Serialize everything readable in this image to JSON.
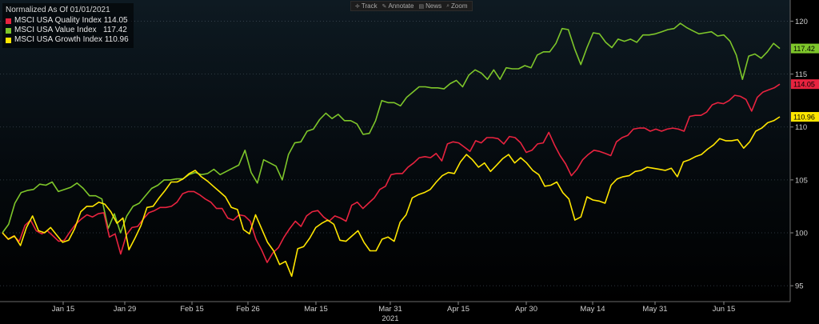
{
  "legend": {
    "header": "Normalized As Of 01/01/2021",
    "items": [
      {
        "name": "MSCI USA Quality Index",
        "value": "114.05",
        "color": "#e8233f"
      },
      {
        "name": "MSCI USA Value Index",
        "value": "117.42",
        "color": "#7ec62a"
      },
      {
        "name": "MSCI USA Growth Index",
        "value": "110.96",
        "color": "#ffe600"
      }
    ]
  },
  "toolbar": {
    "items": [
      {
        "label": "Track",
        "icon": "crosshair-icon"
      },
      {
        "label": "Annotate",
        "icon": "pencil-icon"
      },
      {
        "label": "News",
        "icon": "news-icon"
      },
      {
        "label": "Zoom",
        "icon": "magnifier-icon"
      }
    ]
  },
  "chart_data": {
    "type": "line",
    "title": "Normalized As Of 01/01/2021",
    "x_year_label": "2021",
    "x_ticks": [
      "Jan 15",
      "Jan 29",
      "Feb 15",
      "Feb 26",
      "Mar 15",
      "Mar 31",
      "Apr 15",
      "Apr 30",
      "May 14",
      "May 31",
      "Jun 15"
    ],
    "y_ticks": [
      95,
      100,
      105,
      110,
      115,
      120
    ],
    "ylim": [
      93.5,
      122
    ],
    "y_axis_side": "right",
    "grid": "horizontal dotted",
    "legend_position": "top-left",
    "series": [
      {
        "name": "MSCI USA Value Index",
        "color": "#7ec62a",
        "last_value": "117.42",
        "values": [
          100.0,
          100.8,
          102.8,
          103.8,
          104.0,
          104.1,
          104.6,
          104.5,
          104.8,
          103.9,
          104.1,
          104.3,
          104.7,
          104.2,
          103.5,
          103.5,
          103.2,
          100.4,
          101.8,
          100.0,
          101.6,
          102.5,
          102.8,
          103.5,
          104.2,
          104.5,
          105.0,
          105.0,
          105.1,
          105.1,
          105.5,
          105.7,
          105.5,
          105.6,
          106.0,
          105.5,
          105.8,
          106.1,
          106.4,
          107.8,
          105.7,
          104.7,
          106.9,
          106.6,
          106.3,
          105.0,
          107.4,
          108.5,
          108.6,
          109.6,
          109.8,
          110.7,
          111.3,
          110.8,
          111.2,
          110.6,
          110.6,
          110.3,
          109.3,
          109.4,
          110.6,
          112.5,
          112.3,
          112.3,
          112.0,
          112.8,
          113.3,
          113.8,
          113.8,
          113.7,
          113.7,
          113.6,
          114.1,
          114.4,
          113.8,
          114.9,
          115.4,
          115.1,
          114.5,
          115.4,
          114.5,
          115.6,
          115.5,
          115.5,
          115.8,
          115.6,
          116.8,
          117.1,
          117.1,
          117.9,
          119.3,
          119.2,
          117.4,
          115.9,
          117.5,
          118.9,
          118.8,
          118.0,
          117.5,
          118.3,
          118.1,
          118.3,
          118.0,
          118.7,
          118.7,
          118.8,
          119.0,
          119.2,
          119.3,
          119.8,
          119.4,
          119.1,
          118.8,
          118.9,
          119.0,
          118.6,
          118.7,
          118.1,
          116.8,
          114.5,
          116.7,
          116.9,
          116.5,
          117.1,
          117.9,
          117.42
        ]
      },
      {
        "name": "MSCI USA Quality Index",
        "color": "#e8233f",
        "last_value": "114.05",
        "values": [
          100.0,
          99.4,
          99.7,
          99.2,
          100.7,
          101.2,
          100.2,
          99.9,
          100.2,
          99.7,
          99.2,
          99.3,
          100.1,
          100.8,
          101.3,
          101.7,
          101.5,
          101.8,
          101.9,
          99.6,
          99.9,
          98.0,
          99.8,
          100.5,
          100.6,
          101.3,
          101.9,
          102.1,
          102.4,
          102.4,
          102.5,
          102.9,
          103.7,
          103.9,
          103.9,
          103.6,
          103.2,
          102.9,
          102.3,
          102.3,
          101.4,
          101.2,
          101.7,
          101.6,
          101.1,
          99.4,
          98.4,
          97.2,
          98.1,
          98.6,
          99.6,
          100.4,
          101.1,
          100.6,
          101.6,
          102.0,
          102.1,
          101.5,
          101.1,
          101.6,
          101.4,
          101.1,
          102.6,
          102.9,
          102.3,
          102.8,
          103.3,
          104.1,
          104.4,
          105.5,
          105.6,
          105.6,
          106.2,
          106.6,
          107.1,
          107.2,
          107.1,
          107.5,
          106.8,
          108.4,
          108.6,
          108.5,
          108.1,
          107.7,
          108.7,
          108.5,
          109.0,
          109.0,
          108.9,
          108.4,
          109.1,
          109.0,
          108.5,
          107.6,
          107.8,
          108.4,
          108.5,
          109.5,
          108.3,
          107.3,
          106.5,
          105.4,
          106.0,
          106.9,
          107.4,
          107.8,
          107.7,
          107.5,
          107.3,
          108.6,
          109.0,
          109.2,
          109.8,
          109.9,
          109.9,
          109.6,
          109.8,
          109.6,
          109.8,
          109.9,
          109.8,
          109.6,
          111.0,
          111.1,
          111.1,
          111.4,
          112.1,
          112.3,
          112.2,
          112.5,
          113.0,
          112.9,
          112.6,
          111.5,
          112.8,
          113.3,
          113.5,
          113.7,
          114.05
        ]
      },
      {
        "name": "MSCI USA Growth Index",
        "color": "#ffe600",
        "last_value": "110.96",
        "values": [
          100.0,
          99.4,
          99.7,
          98.8,
          100.5,
          101.6,
          100.2,
          100.0,
          100.5,
          99.8,
          99.1,
          99.3,
          100.4,
          102.0,
          102.5,
          102.5,
          102.9,
          102.7,
          102.0,
          100.9,
          101.4,
          98.4,
          99.5,
          100.7,
          102.4,
          102.5,
          103.3,
          104.0,
          104.8,
          104.8,
          105.1,
          105.6,
          105.9,
          105.3,
          104.9,
          104.4,
          103.9,
          103.4,
          102.4,
          102.2,
          100.3,
          99.9,
          101.7,
          100.4,
          99.1,
          98.3,
          97.0,
          97.3,
          95.9,
          98.5,
          98.7,
          99.5,
          100.5,
          100.9,
          101.2,
          100.8,
          99.3,
          99.2,
          99.7,
          100.2,
          99.1,
          98.3,
          98.3,
          99.4,
          99.6,
          99.2,
          101.0,
          101.7,
          103.3,
          103.6,
          103.8,
          104.1,
          104.8,
          105.4,
          105.7,
          105.6,
          106.7,
          107.4,
          106.9,
          106.2,
          106.6,
          105.8,
          106.4,
          107.0,
          107.4,
          106.6,
          107.1,
          106.6,
          105.9,
          105.5,
          104.4,
          104.5,
          104.8,
          103.8,
          103.2,
          101.2,
          101.5,
          103.4,
          103.1,
          103.0,
          102.8,
          104.5,
          105.1,
          105.3,
          105.4,
          105.8,
          105.9,
          106.2,
          106.1,
          106.0,
          105.9,
          106.1,
          105.3,
          106.7,
          106.9,
          107.2,
          107.4,
          107.9,
          108.3,
          108.9,
          108.7,
          108.7,
          108.8,
          108.0,
          108.6,
          109.6,
          109.9,
          110.4,
          110.6,
          110.96
        ]
      }
    ]
  }
}
